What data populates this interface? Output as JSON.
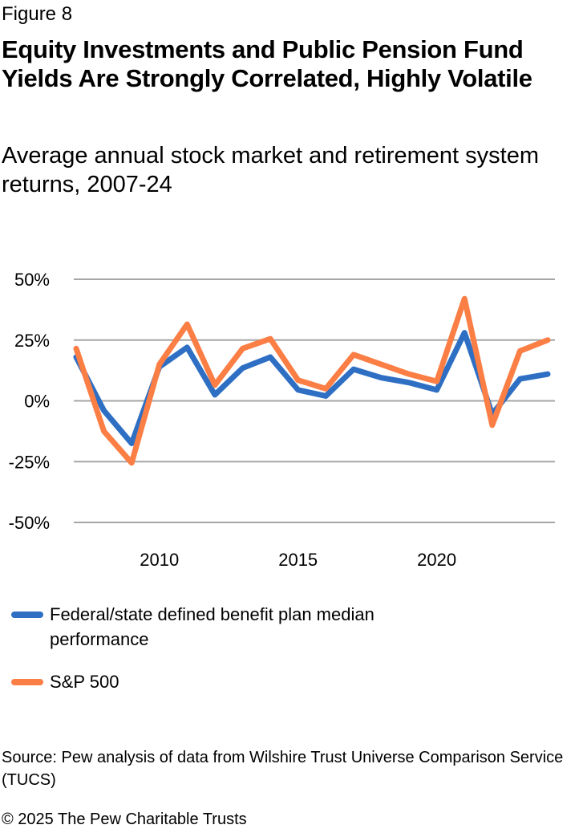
{
  "figure_label": "Figure 8",
  "footer": {
    "source": "Source: Pew analysis of data from Wilshire Trust Universe Comparison Service (TUCS)",
    "copyright": "© 2025 The Pew Charitable Trusts"
  },
  "chart_data": {
    "type": "line",
    "title": "Equity Investments and Public Pension Fund Yields Are Strongly Correlated, Highly Volatile",
    "subtitle": "Average annual stock market and retirement system returns, 2007-24",
    "xlabel": "",
    "ylabel": "",
    "x": [
      2007,
      2008,
      2009,
      2010,
      2011,
      2012,
      2013,
      2014,
      2015,
      2016,
      2017,
      2018,
      2019,
      2020,
      2021,
      2022,
      2023,
      2024
    ],
    "xlim": [
      2007,
      2024
    ],
    "x_ticks": [
      2010,
      2015,
      2020
    ],
    "x_tick_labels": [
      "2010",
      "2015",
      "2020"
    ],
    "ylim": [
      -50,
      50
    ],
    "y_ticks": [
      50,
      25,
      0,
      -25,
      -50
    ],
    "y_tick_labels": [
      "50%",
      "25%",
      "0%",
      "-25%",
      "-50%"
    ],
    "grid": true,
    "legend_placement": "bottom",
    "series": [
      {
        "name": "Federal/state defined benefit plan median performance",
        "color": "#2e6fc4",
        "values": [
          18,
          -4,
          -17.5,
          14,
          22,
          2.5,
          13.5,
          18,
          4.5,
          2,
          13,
          9.5,
          7.5,
          4.5,
          28,
          -5.5,
          9,
          11
        ]
      },
      {
        "name": "S&P 500",
        "color": "#fb7e45",
        "values": [
          21.5,
          -12.5,
          -25.5,
          15,
          31.5,
          6.5,
          21.5,
          25.5,
          8.5,
          5,
          19,
          15,
          11,
          8,
          42,
          -10,
          20.5,
          25
        ]
      }
    ]
  }
}
